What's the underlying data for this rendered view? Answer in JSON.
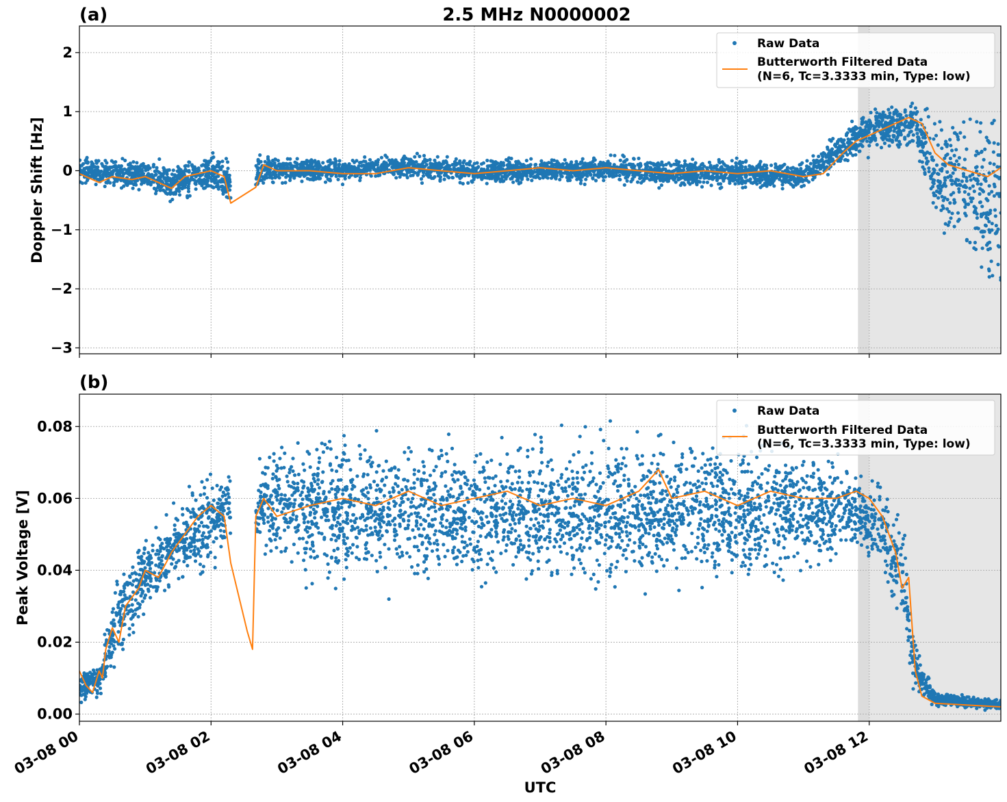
{
  "title": "2.5 MHz N0000002",
  "xlabel": "UTC",
  "colors": {
    "raw": "#1f77b4",
    "filtered": "#ff7f0e",
    "shade": "#e6e6e6",
    "grid": "#b0b0b0"
  },
  "legend": {
    "raw": "Raw Data",
    "filtered_line1": "Butterworth Filtered Data",
    "filtered_line2": "(N=6, Tc=3.3333 min, Type: low)"
  },
  "chart_data": [
    {
      "type": "scatter",
      "panel_label": "(a)",
      "ylabel": "Doppler Shift [Hz]",
      "xlim": [
        0,
        14
      ],
      "ylim": [
        -3.1,
        2.45
      ],
      "x_ticks": [
        {
          "v": 0,
          "label": "03-08 00"
        },
        {
          "v": 2,
          "label": "03-08 02"
        },
        {
          "v": 4,
          "label": "03-08 04"
        },
        {
          "v": 6,
          "label": "03-08 06"
        },
        {
          "v": 8,
          "label": "03-08 08"
        },
        {
          "v": 10,
          "label": "03-08 10"
        },
        {
          "v": 12,
          "label": "03-08 12"
        }
      ],
      "y_ticks": [
        {
          "v": 2,
          "label": "2"
        },
        {
          "v": 1,
          "label": "1"
        },
        {
          "v": 0,
          "label": "0"
        },
        {
          "v": -1,
          "label": "−1"
        },
        {
          "v": -2,
          "label": "−2"
        },
        {
          "v": -3,
          "label": "−3"
        }
      ],
      "shade": [
        11.83,
        14
      ],
      "gap": [
        2.3,
        2.68
      ],
      "series": [
        {
          "name": "Raw Data",
          "kind": "scatter",
          "envelope": [
            [
              0,
              -0.25,
              0.25
            ],
            [
              1,
              -0.35,
              0.2
            ],
            [
              1.4,
              -0.55,
              0.15
            ],
            [
              2.0,
              -0.35,
              0.3
            ],
            [
              2.3,
              -0.7,
              0.2
            ],
            [
              2.7,
              -0.3,
              0.3
            ],
            [
              3,
              -0.2,
              0.25
            ],
            [
              4,
              -0.2,
              0.2
            ],
            [
              5,
              -0.15,
              0.3
            ],
            [
              6,
              -0.25,
              0.2
            ],
            [
              7,
              -0.2,
              0.2
            ],
            [
              8,
              -0.2,
              0.25
            ],
            [
              9,
              -0.3,
              0.2
            ],
            [
              10,
              -0.3,
              0.2
            ],
            [
              11,
              -0.35,
              0.15
            ],
            [
              11.5,
              0.05,
              0.6
            ],
            [
              12,
              0.3,
              1.1
            ],
            [
              12.7,
              0.4,
              1.2
            ],
            [
              13,
              -1.0,
              0.9
            ],
            [
              13.5,
              -1.6,
              1.1
            ],
            [
              14,
              -2.5,
              1.4
            ]
          ]
        },
        {
          "name": "Butterworth Filtered Data (N=6, Tc=3.3333 min, Type: low)",
          "kind": "line",
          "points": [
            [
              0,
              -0.05
            ],
            [
              0.3,
              -0.2
            ],
            [
              0.5,
              -0.1
            ],
            [
              0.8,
              -0.15
            ],
            [
              1.0,
              -0.1
            ],
            [
              1.2,
              -0.2
            ],
            [
              1.4,
              -0.3
            ],
            [
              1.6,
              -0.1
            ],
            [
              1.8,
              -0.05
            ],
            [
              2.0,
              0.0
            ],
            [
              2.2,
              -0.1
            ],
            [
              2.3,
              -0.55
            ],
            [
              2.68,
              -0.28
            ],
            [
              2.8,
              0.1
            ],
            [
              3.0,
              0.0
            ],
            [
              3.5,
              0.0
            ],
            [
              4.0,
              -0.05
            ],
            [
              4.5,
              -0.05
            ],
            [
              5.0,
              0.05
            ],
            [
              5.5,
              0.0
            ],
            [
              6.0,
              -0.05
            ],
            [
              6.5,
              0.0
            ],
            [
              7.0,
              0.05
            ],
            [
              7.5,
              0.0
            ],
            [
              8.0,
              0.05
            ],
            [
              8.5,
              0.0
            ],
            [
              9.0,
              -0.05
            ],
            [
              9.5,
              0.0
            ],
            [
              10.0,
              -0.05
            ],
            [
              10.5,
              0.0
            ],
            [
              11.0,
              -0.1
            ],
            [
              11.3,
              -0.05
            ],
            [
              11.6,
              0.3
            ],
            [
              11.8,
              0.5
            ],
            [
              12.0,
              0.6
            ],
            [
              12.3,
              0.75
            ],
            [
              12.6,
              0.9
            ],
            [
              12.8,
              0.8
            ],
            [
              13.0,
              0.3
            ],
            [
              13.2,
              0.1
            ],
            [
              13.5,
              0.0
            ],
            [
              13.8,
              -0.1
            ],
            [
              14.0,
              0.05
            ]
          ]
        }
      ]
    },
    {
      "type": "scatter",
      "panel_label": "(b)",
      "ylabel": "Peak Voltage [V]",
      "xlabel": "UTC",
      "xlim": [
        0,
        14
      ],
      "ylim": [
        -0.002,
        0.089
      ],
      "x_ticks": [
        {
          "v": 0,
          "label": "03-08 00"
        },
        {
          "v": 2,
          "label": "03-08 02"
        },
        {
          "v": 4,
          "label": "03-08 04"
        },
        {
          "v": 6,
          "label": "03-08 06"
        },
        {
          "v": 8,
          "label": "03-08 08"
        },
        {
          "v": 10,
          "label": "03-08 10"
        },
        {
          "v": 12,
          "label": "03-08 12"
        }
      ],
      "y_ticks": [
        {
          "v": 0.08,
          "label": "0.08"
        },
        {
          "v": 0.06,
          "label": "0.06"
        },
        {
          "v": 0.04,
          "label": "0.04"
        },
        {
          "v": 0.02,
          "label": "0.02"
        },
        {
          "v": 0.0,
          "label": "0.00"
        }
      ],
      "shade": [
        11.83,
        14
      ],
      "gap": [
        2.3,
        2.68
      ],
      "series": [
        {
          "name": "Raw Data",
          "kind": "scatter",
          "envelope": [
            [
              0,
              0.003,
              0.012
            ],
            [
              0.3,
              0.005,
              0.015
            ],
            [
              0.6,
              0.015,
              0.04
            ],
            [
              1.0,
              0.025,
              0.05
            ],
            [
              1.5,
              0.035,
              0.06
            ],
            [
              2.0,
              0.04,
              0.068
            ],
            [
              2.3,
              0.045,
              0.07
            ],
            [
              2.7,
              0.045,
              0.07
            ],
            [
              3.0,
              0.04,
              0.075
            ],
            [
              4,
              0.035,
              0.078
            ],
            [
              6,
              0.035,
              0.078
            ],
            [
              8,
              0.035,
              0.078
            ],
            [
              10,
              0.035,
              0.078
            ],
            [
              11,
              0.04,
              0.075
            ],
            [
              11.8,
              0.045,
              0.068
            ],
            [
              12.2,
              0.04,
              0.065
            ],
            [
              12.5,
              0.02,
              0.055
            ],
            [
              12.7,
              0.005,
              0.02
            ],
            [
              13.0,
              0.002,
              0.006
            ],
            [
              14.0,
              0.001,
              0.004
            ]
          ]
        },
        {
          "name": "Butterworth Filtered Data (N=6, Tc=3.3333 min, Type: low)",
          "kind": "line",
          "points": [
            [
              0,
              0.012
            ],
            [
              0.1,
              0.008
            ],
            [
              0.2,
              0.006
            ],
            [
              0.3,
              0.012
            ],
            [
              0.35,
              0.01
            ],
            [
              0.4,
              0.018
            ],
            [
              0.5,
              0.024
            ],
            [
              0.6,
              0.02
            ],
            [
              0.7,
              0.03
            ],
            [
              0.9,
              0.035
            ],
            [
              1.0,
              0.04
            ],
            [
              1.2,
              0.038
            ],
            [
              1.4,
              0.045
            ],
            [
              1.6,
              0.05
            ],
            [
              1.8,
              0.055
            ],
            [
              2.0,
              0.058
            ],
            [
              2.2,
              0.055
            ],
            [
              2.3,
              0.042
            ],
            [
              2.55,
              0.023
            ],
            [
              2.63,
              0.018
            ],
            [
              2.68,
              0.055
            ],
            [
              2.8,
              0.06
            ],
            [
              3.0,
              0.055
            ],
            [
              3.5,
              0.058
            ],
            [
              4.0,
              0.06
            ],
            [
              4.5,
              0.058
            ],
            [
              5.0,
              0.062
            ],
            [
              5.5,
              0.058
            ],
            [
              6.0,
              0.06
            ],
            [
              6.5,
              0.062
            ],
            [
              7.0,
              0.058
            ],
            [
              7.5,
              0.06
            ],
            [
              8.0,
              0.058
            ],
            [
              8.5,
              0.062
            ],
            [
              8.8,
              0.068
            ],
            [
              9.0,
              0.06
            ],
            [
              9.5,
              0.062
            ],
            [
              10.0,
              0.058
            ],
            [
              10.5,
              0.062
            ],
            [
              11.0,
              0.06
            ],
            [
              11.5,
              0.06
            ],
            [
              11.8,
              0.062
            ],
            [
              12.0,
              0.06
            ],
            [
              12.2,
              0.055
            ],
            [
              12.4,
              0.045
            ],
            [
              12.5,
              0.035
            ],
            [
              12.6,
              0.038
            ],
            [
              12.7,
              0.012
            ],
            [
              12.8,
              0.005
            ],
            [
              13.0,
              0.003
            ],
            [
              13.5,
              0.0025
            ],
            [
              14.0,
              0.002
            ]
          ]
        }
      ]
    }
  ]
}
